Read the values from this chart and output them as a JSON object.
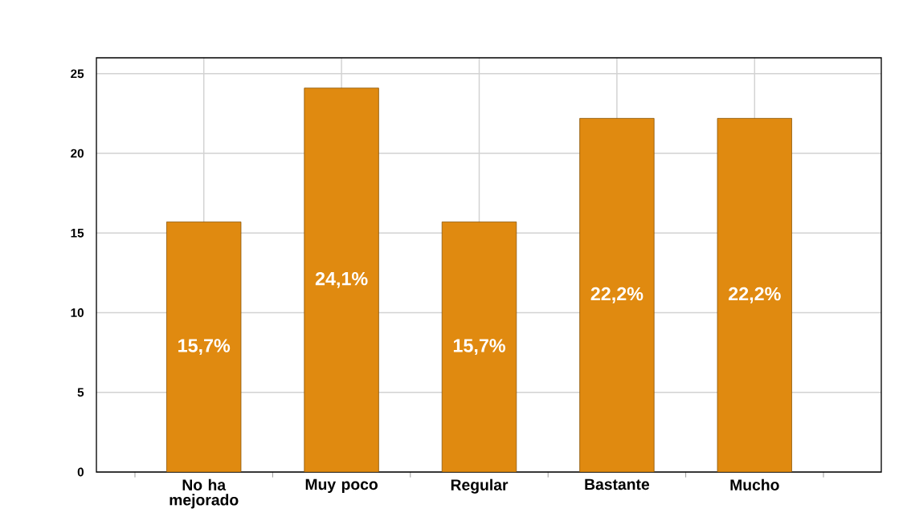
{
  "chart_data": {
    "type": "bar",
    "categories": [
      "No ha mejorado",
      "Muy poco",
      "Regular",
      "Bastante",
      "Mucho"
    ],
    "values": [
      15.7,
      24.1,
      15.7,
      22.2,
      22.2
    ],
    "value_labels": [
      "15,7%",
      "24,1%",
      "15,7%",
      "22,2%",
      "22,2%"
    ],
    "color": "#e08a10",
    "ylim": [
      0,
      26
    ],
    "yticks": [
      0,
      5,
      10,
      15,
      20,
      25
    ],
    "grid": true
  }
}
